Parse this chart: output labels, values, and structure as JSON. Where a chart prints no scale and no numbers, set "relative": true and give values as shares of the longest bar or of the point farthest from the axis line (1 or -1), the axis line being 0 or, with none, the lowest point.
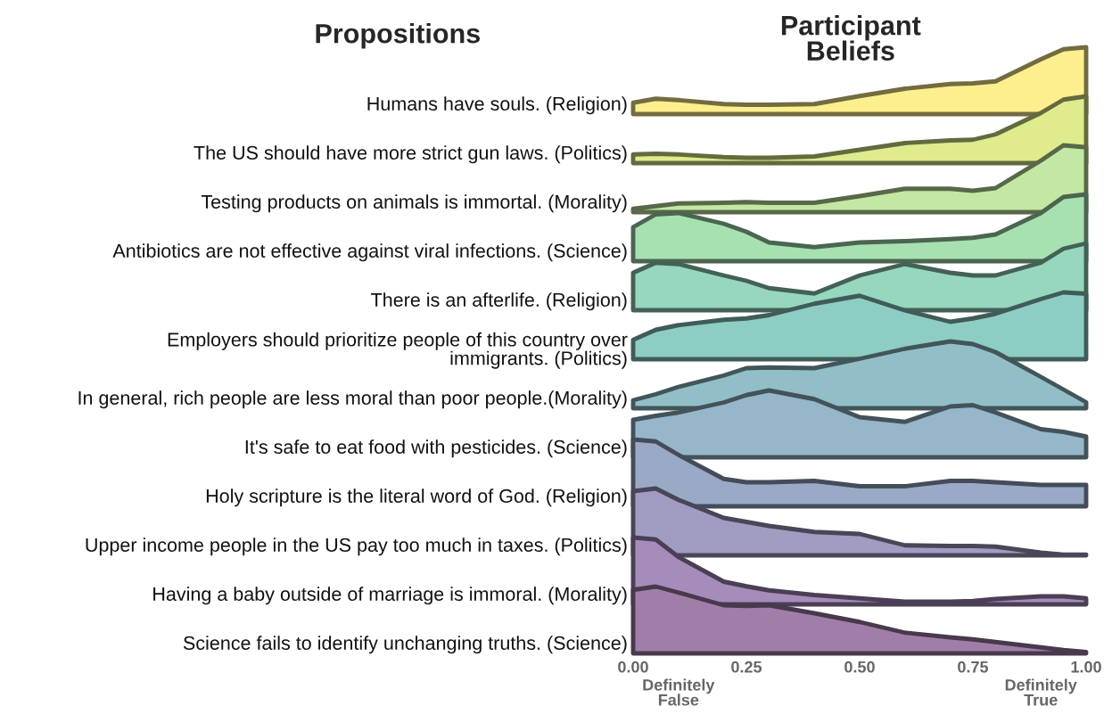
{
  "chart_data": [
    {
      "type": "area",
      "relative": true,
      "title": "Participant\nBeliefs",
      "annotations": [
        "Propositions"
      ],
      "tick_labels": false,
      "xlim": [
        0,
        1
      ],
      "x": [
        0,
        0.05,
        0.1,
        0.2,
        0.25,
        0.3,
        0.4,
        0.5,
        0.6,
        0.7,
        0.75,
        0.8,
        0.9,
        0.95,
        1
      ],
      "series": [
        {
          "name": "Humans have souls. (Religion)",
          "color": "#fdef8e",
          "values": [
            0.17,
            0.23,
            0.21,
            0.15,
            0.14,
            0.14,
            0.15,
            0.27,
            0.38,
            0.45,
            0.46,
            0.49,
            0.82,
            0.97,
            1.0
          ]
        }
      ]
    },
    {
      "type": "area",
      "relative": true,
      "tick_labels": false,
      "xlim": [
        0,
        1
      ],
      "x": [
        0,
        0.05,
        0.1,
        0.2,
        0.25,
        0.3,
        0.4,
        0.5,
        0.6,
        0.7,
        0.75,
        0.8,
        0.9,
        0.95,
        1
      ],
      "series": [
        {
          "name": "The US should have more strict gun laws. (Politics)",
          "color": "#dfeb8c",
          "values": [
            0.13,
            0.14,
            0.13,
            0.09,
            0.08,
            0.08,
            0.1,
            0.2,
            0.3,
            0.34,
            0.35,
            0.43,
            0.75,
            0.95,
            1.0
          ]
        }
      ]
    },
    {
      "type": "area",
      "relative": true,
      "tick_labels": false,
      "xlim": [
        0,
        1
      ],
      "x": [
        0,
        0.05,
        0.1,
        0.2,
        0.25,
        0.3,
        0.4,
        0.5,
        0.6,
        0.7,
        0.75,
        0.8,
        0.9,
        0.95,
        1
      ],
      "series": [
        {
          "name": "Testing products on animals is immortal. (Morality)",
          "color": "#c3e8a3",
          "values": [
            0.05,
            0.09,
            0.13,
            0.14,
            0.15,
            0.14,
            0.14,
            0.24,
            0.35,
            0.35,
            0.32,
            0.36,
            0.77,
            1.0,
            0.97
          ]
        }
      ]
    },
    {
      "type": "area",
      "relative": true,
      "tick_labels": false,
      "xlim": [
        0,
        1
      ],
      "x": [
        0,
        0.05,
        0.1,
        0.2,
        0.25,
        0.3,
        0.4,
        0.5,
        0.6,
        0.7,
        0.75,
        0.8,
        0.9,
        0.95,
        1
      ],
      "series": [
        {
          "name": "Antibiotics are not effective against viral infections. (Science)",
          "color": "#a7e1b2",
          "values": [
            0.51,
            0.7,
            0.72,
            0.56,
            0.44,
            0.28,
            0.21,
            0.28,
            0.3,
            0.33,
            0.35,
            0.4,
            0.72,
            0.96,
            1.0
          ]
        }
      ]
    },
    {
      "type": "area",
      "relative": true,
      "tick_labels": false,
      "xlim": [
        0,
        1
      ],
      "x": [
        0,
        0.05,
        0.1,
        0.2,
        0.25,
        0.3,
        0.4,
        0.5,
        0.6,
        0.7,
        0.75,
        0.8,
        0.9,
        0.95,
        1
      ],
      "series": [
        {
          "name": "There is an afterlife. (Religion)",
          "color": "#96d7be",
          "values": [
            0.56,
            0.71,
            0.69,
            0.52,
            0.44,
            0.33,
            0.25,
            0.52,
            0.69,
            0.56,
            0.52,
            0.52,
            0.71,
            0.92,
            1.0
          ]
        }
      ]
    },
    {
      "type": "area",
      "relative": true,
      "tick_labels": false,
      "xlim": [
        0,
        1
      ],
      "x": [
        0,
        0.05,
        0.1,
        0.2,
        0.25,
        0.3,
        0.4,
        0.5,
        0.6,
        0.7,
        0.75,
        0.8,
        0.9,
        0.95,
        1
      ],
      "series": [
        {
          "name": "Employers should prioritize people of this country over\nimmigrants. (Politics)",
          "color": "#8ecdc4",
          "values": [
            0.29,
            0.44,
            0.51,
            0.59,
            0.61,
            0.66,
            0.83,
            0.95,
            0.73,
            0.56,
            0.61,
            0.68,
            0.9,
            1.0,
            0.98
          ]
        }
      ]
    },
    {
      "type": "area",
      "relative": true,
      "tick_labels": false,
      "xlim": [
        0,
        1
      ],
      "x": [
        0,
        0.05,
        0.1,
        0.2,
        0.25,
        0.3,
        0.4,
        0.5,
        0.6,
        0.7,
        0.75,
        0.8,
        0.9,
        0.95,
        1
      ],
      "series": [
        {
          "name": "In general, rich people are less moral than poor people.(Morality)",
          "color": "#92bfc7",
          "values": [
            0.12,
            0.21,
            0.32,
            0.49,
            0.6,
            0.61,
            0.6,
            0.74,
            0.89,
            1.0,
            0.96,
            0.84,
            0.47,
            0.28,
            0.09
          ]
        }
      ]
    },
    {
      "type": "area",
      "relative": true,
      "tick_labels": false,
      "xlim": [
        0,
        1
      ],
      "x": [
        0,
        0.05,
        0.1,
        0.2,
        0.25,
        0.3,
        0.4,
        0.5,
        0.6,
        0.7,
        0.75,
        0.8,
        0.9,
        0.95,
        1
      ],
      "series": [
        {
          "name": "It's safe to eat food with pesticides. (Science)",
          "color": "#96b6c9",
          "values": [
            0.56,
            0.62,
            0.67,
            0.82,
            0.93,
            1.0,
            0.87,
            0.6,
            0.53,
            0.76,
            0.78,
            0.67,
            0.42,
            0.38,
            0.31
          ]
        }
      ]
    },
    {
      "type": "area",
      "relative": true,
      "tick_labels": false,
      "xlim": [
        0,
        1
      ],
      "x": [
        0,
        0.05,
        0.1,
        0.2,
        0.25,
        0.3,
        0.4,
        0.5,
        0.6,
        0.7,
        0.75,
        0.8,
        0.9,
        0.95,
        1
      ],
      "series": [
        {
          "name": "Holy scripture is the literal word of God. (Religion)",
          "color": "#9aa9c6",
          "values": [
            1.0,
            0.97,
            0.77,
            0.41,
            0.36,
            0.36,
            0.38,
            0.3,
            0.3,
            0.38,
            0.38,
            0.36,
            0.32,
            0.32,
            0.32
          ]
        }
      ]
    },
    {
      "type": "area",
      "relative": true,
      "tick_labels": false,
      "xlim": [
        0,
        1
      ],
      "x": [
        0,
        0.05,
        0.1,
        0.2,
        0.25,
        0.3,
        0.4,
        0.5,
        0.6,
        0.7,
        0.75,
        0.8,
        0.9,
        0.95,
        1
      ],
      "series": [
        {
          "name": "Upper income people in the US pay too much in taxes. (Politics)",
          "color": "#a09cc2",
          "values": [
            0.96,
            1.0,
            0.83,
            0.56,
            0.5,
            0.44,
            0.35,
            0.32,
            0.15,
            0.14,
            0.14,
            0.13,
            0.04,
            0.01,
            0.01
          ]
        }
      ]
    },
    {
      "type": "area",
      "relative": true,
      "tick_labels": false,
      "xlim": [
        0,
        1
      ],
      "x": [
        0,
        0.05,
        0.1,
        0.2,
        0.25,
        0.3,
        0.4,
        0.5,
        0.6,
        0.7,
        0.75,
        0.8,
        0.9,
        0.95,
        1
      ],
      "series": [
        {
          "name": "Having a baby outside of marriage is immoral. (Morality)",
          "color": "#a58cbb",
          "values": [
            1.0,
            0.97,
            0.71,
            0.34,
            0.27,
            0.21,
            0.14,
            0.09,
            0.04,
            0.04,
            0.05,
            0.08,
            0.12,
            0.12,
            0.09
          ]
        }
      ]
    },
    {
      "type": "area",
      "relative": true,
      "tick_labels": "x",
      "xlim": [
        0,
        1
      ],
      "x": [
        0,
        0.05,
        0.1,
        0.2,
        0.25,
        0.3,
        0.4,
        0.5,
        0.6,
        0.7,
        0.75,
        0.8,
        0.9,
        0.95,
        1
      ],
      "xticks": [
        {
          "value": 0,
          "label": "0.00"
        },
        {
          "value": 0.25,
          "label": "0.25"
        },
        {
          "value": 0.5,
          "label": "0.50"
        },
        {
          "value": 0.75,
          "label": "0.75"
        },
        {
          "value": 1,
          "label": "1.00"
        }
      ],
      "annotations": [
        "Definitely\nFalse",
        "Definitely\nTrue"
      ],
      "series": [
        {
          "name": "Science fails to identify unchanging truths. (Science)",
          "color": "#a17ea9",
          "values": [
            0.95,
            1.0,
            0.91,
            0.72,
            0.71,
            0.72,
            0.6,
            0.47,
            0.31,
            0.24,
            0.21,
            0.17,
            0.09,
            0.05,
            0.02
          ]
        }
      ]
    }
  ]
}
